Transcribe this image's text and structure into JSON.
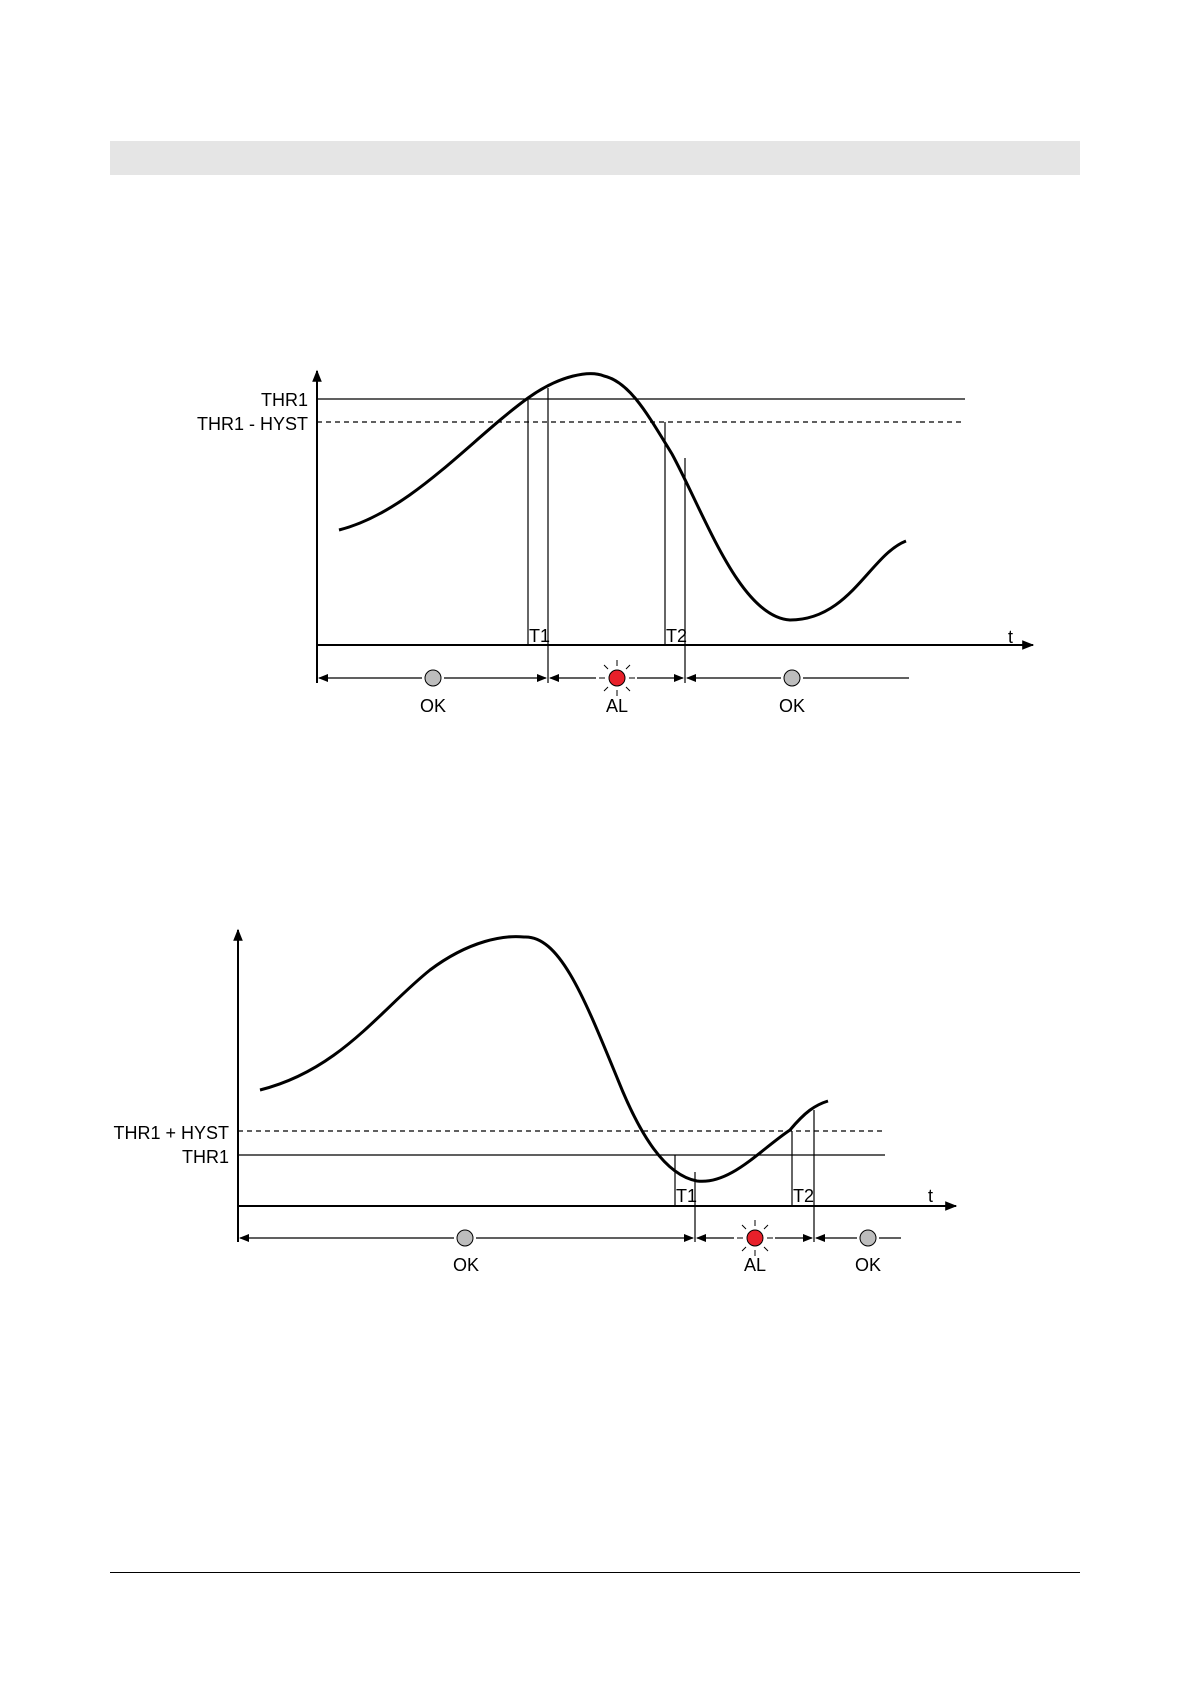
{
  "page": {
    "header_bar_color": "#e5e5e5"
  },
  "diagram_upper": {
    "threshold_label": "THR1",
    "hysteresis_label": "THR1 - HYST",
    "time_axis_label": "t",
    "t1_label": "T1",
    "t2_label": "T2",
    "states": [
      {
        "label": "OK",
        "led": "off"
      },
      {
        "label": "AL",
        "led": "on"
      },
      {
        "label": "OK",
        "led": "off"
      }
    ]
  },
  "diagram_lower": {
    "hysteresis_label": "THR1 + HYST",
    "threshold_label": "THR1",
    "time_axis_label": "t",
    "t1_label": "T1",
    "t2_label": "T2",
    "states": [
      {
        "label": "OK",
        "led": "off"
      },
      {
        "label": "AL",
        "led": "on"
      },
      {
        "label": "OK",
        "led": "off"
      }
    ]
  },
  "colors": {
    "led_off": "#bdbdbd",
    "led_on": "#e8202a",
    "line": "#000000"
  },
  "icons": [
    "status-led-off-icon",
    "alarm-led-blinking-icon",
    "arrow-icon"
  ]
}
